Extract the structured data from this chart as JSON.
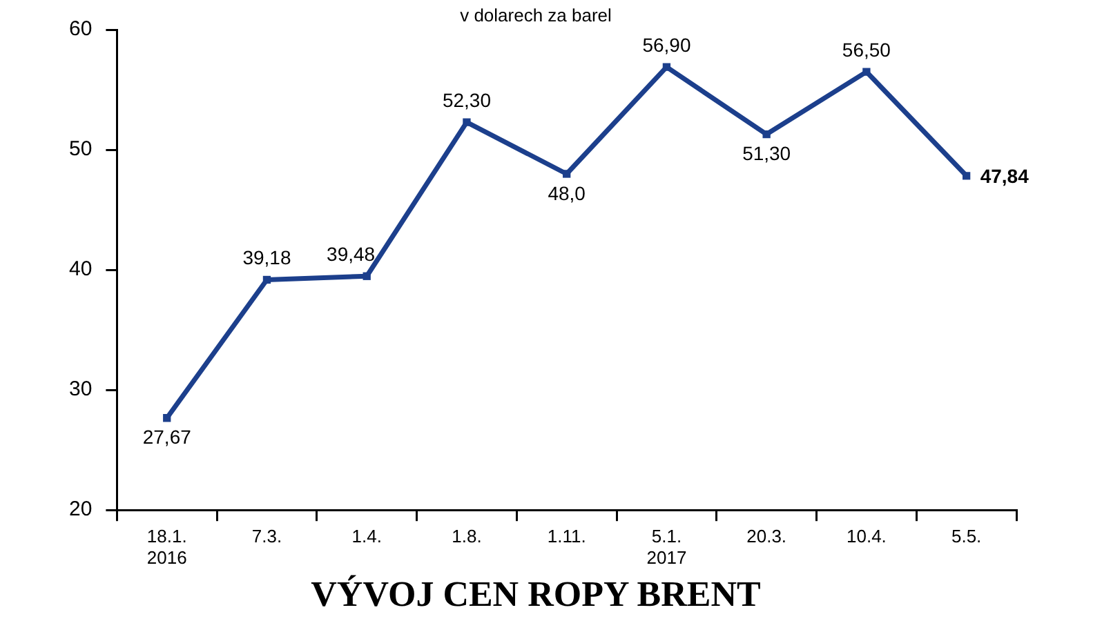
{
  "chart_data": {
    "type": "line",
    "title": "VÝVOJ CEN ROPY BRENT",
    "subtitle": "v dolarech za barel",
    "categories": [
      "18.1.\n2016",
      "7.3.",
      "1.4.",
      "1.8.",
      "1.11.",
      "5.1.\n2017",
      "20.3.",
      "10.4.",
      "5.5."
    ],
    "series": [
      {
        "color": "#1c3f8c",
        "values": [
          27.67,
          39.18,
          39.48,
          52.3,
          48.0,
          56.9,
          51.3,
          56.5,
          47.84
        ],
        "value_labels": [
          "27,67",
          "39,18",
          "39,48",
          "52,30",
          "48,0",
          "56,90",
          "51,30",
          "56,50",
          "47,84"
        ]
      }
    ],
    "ylim": [
      20,
      60
    ],
    "yticks": [
      20,
      30,
      40,
      50,
      60
    ],
    "grid": false,
    "legend": false,
    "marker": "square",
    "line_style": "solid"
  }
}
